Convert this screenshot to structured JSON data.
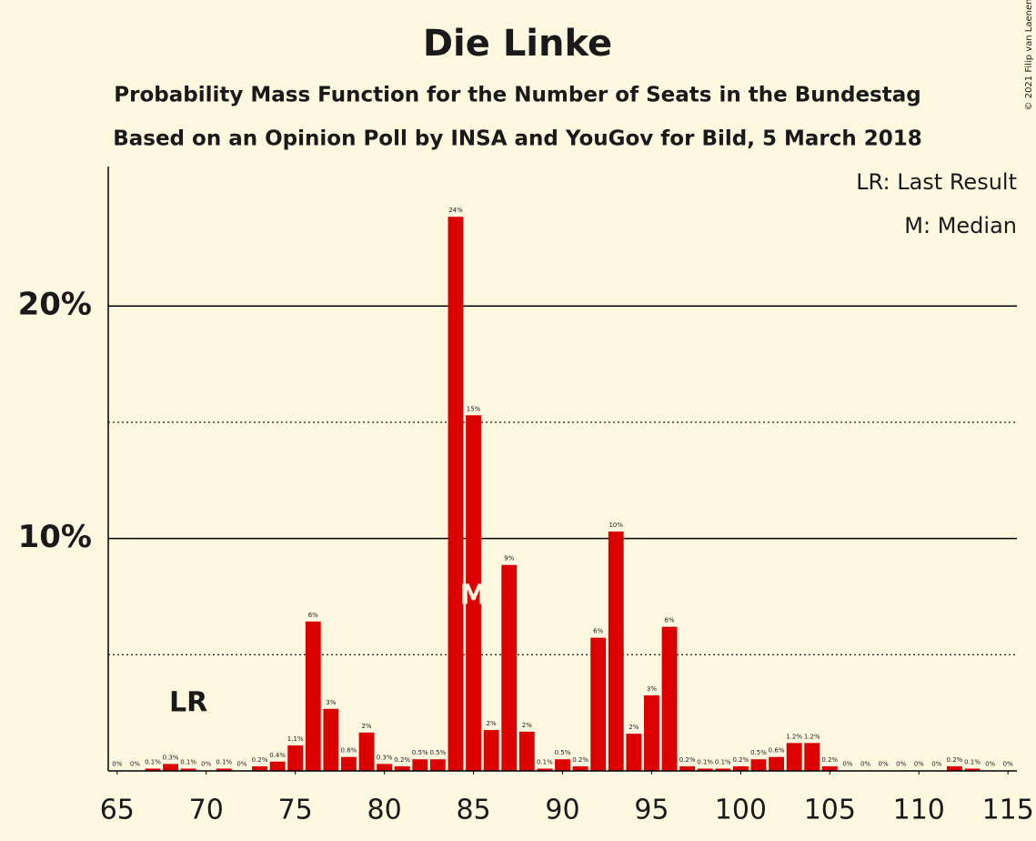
{
  "chart_data": {
    "type": "bar",
    "title": "Die Linke",
    "subtitle": "Probability Mass Function for the Number of Seats in the Bundestag",
    "subtitle2": "Based on an Opinion Poll by INSA and YouGov for Bild, 5 March 2018",
    "copyright": "© 2021 Filip van Laenen",
    "legend": [
      "LR: Last Result",
      "M: Median"
    ],
    "annotations": [
      {
        "text": "LR",
        "x": 69
      },
      {
        "text": "M",
        "x": 85
      }
    ],
    "color": "#dd0000",
    "x": [
      65,
      66,
      67,
      68,
      69,
      70,
      71,
      72,
      73,
      74,
      75,
      76,
      77,
      78,
      79,
      80,
      81,
      82,
      83,
      84,
      85,
      86,
      87,
      88,
      89,
      90,
      91,
      92,
      93,
      94,
      95,
      96,
      97,
      98,
      99,
      100,
      101,
      102,
      103,
      104,
      105,
      106,
      107,
      108,
      109,
      110,
      111,
      112,
      113,
      114,
      115
    ],
    "values": [
      0.02,
      0.02,
      0.1,
      0.3,
      0.1,
      0.02,
      0.1,
      0.02,
      0.2,
      0.4,
      1.1,
      6.43,
      2.67,
      0.6,
      1.65,
      0.3,
      0.2,
      0.5,
      0.5,
      23.84,
      15.3,
      1.76,
      8.86,
      1.69,
      0.1,
      0.5,
      0.2,
      5.73,
      10.3,
      1.6,
      3.25,
      6.2,
      0.2,
      0.1,
      0.1,
      0.2,
      0.5,
      0.6,
      1.2,
      1.2,
      0.2,
      0.02,
      0.02,
      0.02,
      0.02,
      0.02,
      0.02,
      0.2,
      0.1,
      0.02,
      0.02
    ],
    "value_labels": [
      "0%",
      "0%",
      "0.1%",
      "0.3%",
      "0.1%",
      "0%",
      "0.1%",
      "0%",
      "0.2%",
      "0.4%",
      "1.1%",
      "6%",
      "3%",
      "0.6%",
      "2%",
      "0.3%",
      "0.2%",
      "0.5%",
      "0.5%",
      "24%",
      "15%",
      "2%",
      "9%",
      "2%",
      "0.1%",
      "0.5%",
      "0.2%",
      "6%",
      "10%",
      "2%",
      "3%",
      "6%",
      "0.2%",
      "0.1%",
      "0.1%",
      "0.2%",
      "0.5%",
      "0.6%",
      "1.2%",
      "1.2%",
      "0.2%",
      "0%",
      "0%",
      "0%",
      "0%",
      "0%",
      "0%",
      "0.2%",
      "0.1%",
      "0%",
      "0%"
    ],
    "xlim": [
      64.5,
      115.5
    ],
    "xticks": [
      65,
      70,
      75,
      80,
      85,
      90,
      95,
      100,
      105,
      110,
      115
    ],
    "ylim": [
      0,
      26
    ],
    "yticks": [
      {
        "value": 10,
        "label": "10%"
      },
      {
        "value": 20,
        "label": "20%"
      }
    ],
    "minor_yticks": [
      5,
      15
    ],
    "grid": true
  }
}
